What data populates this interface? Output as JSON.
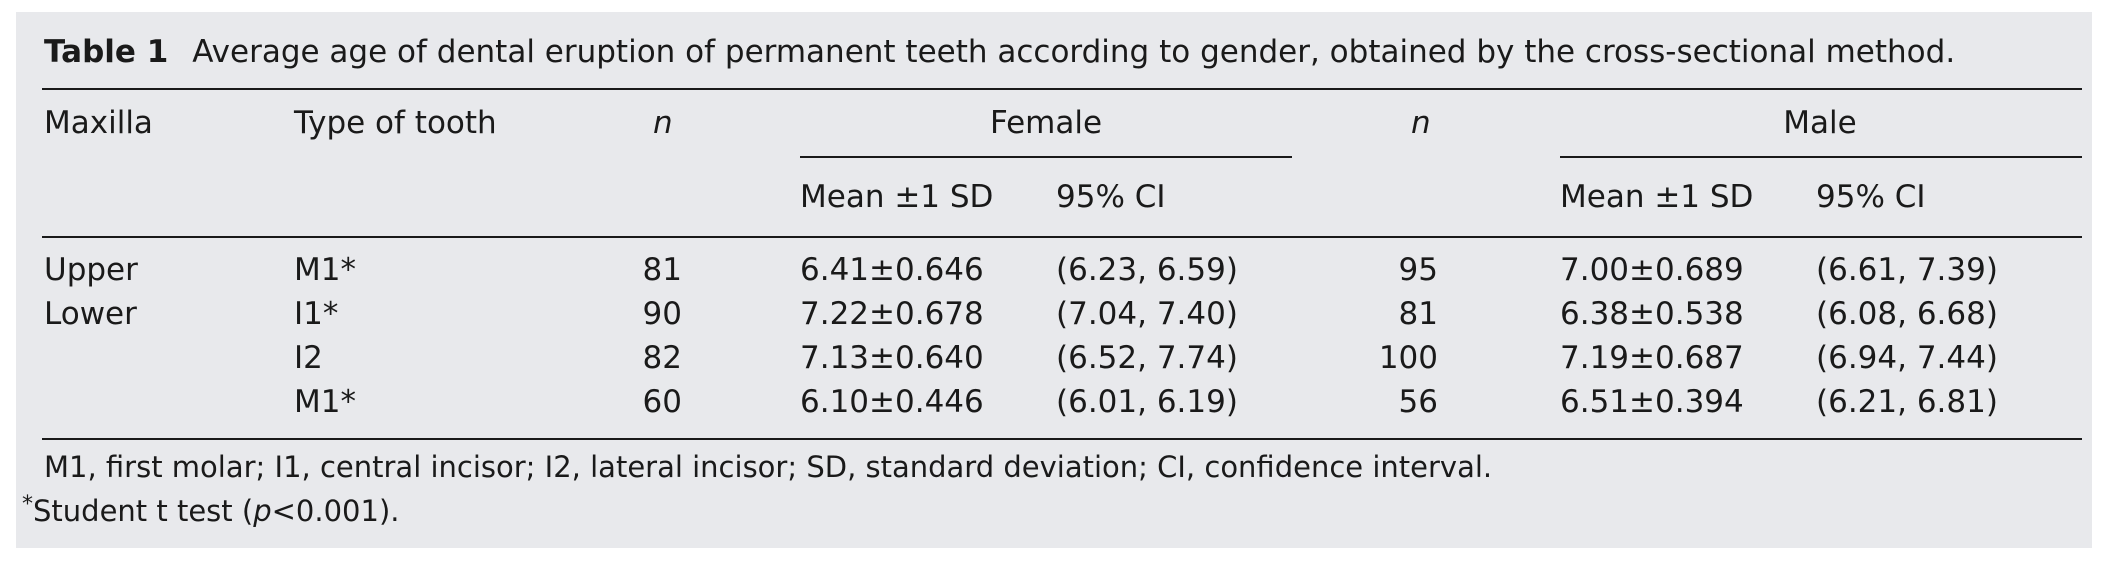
{
  "caption": {
    "tag": "Table 1",
    "text": "Average age of dental eruption of permanent teeth according to gender, obtained by the cross-sectional method."
  },
  "headers": {
    "maxilla": "Maxilla",
    "tooth_type": "Type of tooth",
    "n_female": "n",
    "female": "Female",
    "n_male": "n",
    "male": "Male",
    "female_mean": "Mean ±1 SD",
    "female_ci": "95% CI",
    "male_mean": "Mean ±1 SD",
    "male_ci": "95% CI"
  },
  "rows": [
    {
      "maxilla": "Upper",
      "tooth": "M1*",
      "n_f": "81",
      "f_mean": "6.41±0.646",
      "f_ci": "(6.23, 6.59)",
      "n_m": "95",
      "m_mean": "7.00±0.689",
      "m_ci": "(6.61, 7.39)"
    },
    {
      "maxilla": "Lower",
      "tooth": "I1*",
      "n_f": "90",
      "f_mean": "7.22±0.678",
      "f_ci": "(7.04, 7.40)",
      "n_m": "81",
      "m_mean": "6.38±0.538",
      "m_ci": "(6.08, 6.68)"
    },
    {
      "maxilla": "",
      "tooth": "I2",
      "n_f": "82",
      "f_mean": "7.13±0.640",
      "f_ci": "(6.52, 7.74)",
      "n_m": "100",
      "m_mean": "7.19±0.687",
      "m_ci": "(6.94, 7.44)"
    },
    {
      "maxilla": "",
      "tooth": "M1*",
      "n_f": "60",
      "f_mean": "6.10±0.446",
      "f_ci": "(6.01, 6.19)",
      "n_m": "56",
      "m_mean": "6.51±0.394",
      "m_ci": "(6.21, 6.81)"
    }
  ],
  "footnotes": {
    "abbreviations": "M1, first molar; I1, central incisor; I2, lateral incisor; SD, standard deviation; CI, confidence interval.",
    "star": "*",
    "test_prefix": "Student t test (",
    "test_p": "p",
    "test_suffix": "<0.001)."
  }
}
